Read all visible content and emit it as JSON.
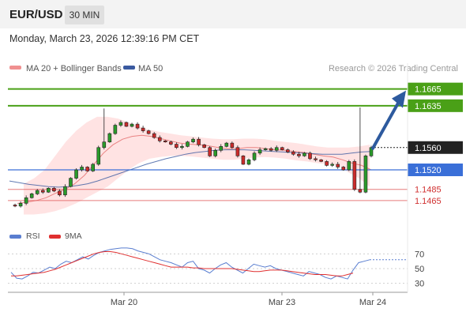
{
  "header": {
    "symbol": "EUR/USD",
    "timeframe": "30 MIN"
  },
  "datetime": "Monday, March 23, 2026 12:39:16 PM CET",
  "legend": {
    "bollinger_label": "MA 20 + Bollinger Bands",
    "ma50_label": "MA 50",
    "credit": "Research © 2026 Trading Central"
  },
  "colors": {
    "resistance": "#4aa017",
    "support_blue": "#3a6fd8",
    "support_red": "#e05a5a",
    "ma20": "#e05a5a",
    "bollinger_fill": "#ffdede",
    "ma50": "#3a5aa0",
    "arrow": "#2d5a9e",
    "candle": "#222222",
    "rsi": "#5a7ed0",
    "rsi_ma": "#e03030"
  },
  "chart_data": [
    {
      "type": "candlestick",
      "ylim": [
        1.1435,
        1.169
      ],
      "x_ticks": [
        "Mar 20",
        "Mar 23",
        "Mar 24"
      ],
      "ma_series": [
        "MA 20 + Bollinger Bands",
        "MA 50"
      ],
      "levels": [
        {
          "value": 1.1665,
          "label": "1.1665",
          "style": "green-box"
        },
        {
          "value": 1.1635,
          "label": "1.1635",
          "style": "green-box"
        },
        {
          "value": 1.156,
          "label": "1.1560",
          "style": "current"
        },
        {
          "value": 1.152,
          "label": "1.1520",
          "style": "blue-box"
        },
        {
          "value": 1.1485,
          "label": "1.1485",
          "style": "red-text"
        },
        {
          "value": 1.1465,
          "label": "1.1465",
          "style": "red-text"
        }
      ],
      "close_path": [
        1.1457,
        1.1455,
        1.146,
        1.147,
        1.1477,
        1.1483,
        1.148,
        1.1487,
        1.1482,
        1.1475,
        1.149,
        1.1505,
        1.152,
        1.1525,
        1.1518,
        1.153,
        1.156,
        1.157,
        1.1585,
        1.16,
        1.1605,
        1.1598,
        1.1602,
        1.1595,
        1.159,
        1.1585,
        1.1578,
        1.1572,
        1.157,
        1.1566,
        1.156,
        1.1562,
        1.157,
        1.1575,
        1.1565,
        1.156,
        1.1545,
        1.1555,
        1.1562,
        1.1568,
        1.156,
        1.1545,
        1.153,
        1.1538,
        1.155,
        1.1556,
        1.1558,
        1.1555,
        1.156,
        1.1556,
        1.1552,
        1.1548,
        1.1545,
        1.155,
        1.154,
        1.1538,
        1.1535,
        1.1528,
        1.153,
        1.1525,
        1.152,
        1.1535,
        1.1485,
        1.148,
        1.1545,
        1.156
      ],
      "ma20": [
        1.146,
        1.1462,
        1.1465,
        1.147,
        1.1478,
        1.1485,
        1.1495,
        1.151,
        1.153,
        1.155,
        1.1565,
        1.1575,
        1.158,
        1.1582,
        1.158,
        1.1576,
        1.1572,
        1.1568,
        1.1566,
        1.1565,
        1.1563,
        1.156,
        1.1558,
        1.1558,
        1.156,
        1.156,
        1.1558,
        1.1556,
        1.1555,
        1.1553,
        1.1551,
        1.1548,
        1.1545,
        1.1543,
        1.1538,
        1.1532,
        1.1528,
        1.152
      ],
      "bb_upper": [
        1.1495,
        1.1505,
        1.152,
        1.1545,
        1.157,
        1.159,
        1.1605,
        1.1615,
        1.1615,
        1.1612,
        1.1605,
        1.1598,
        1.1592,
        1.1588,
        1.1585,
        1.1582,
        1.158,
        1.1578,
        1.1576,
        1.1575,
        1.1575,
        1.1576,
        1.1576,
        1.1575,
        1.1572,
        1.157,
        1.1568,
        1.1565,
        1.1562,
        1.156,
        1.156,
        1.156,
        1.1562,
        1.1565
      ],
      "bb_lower": [
        1.144,
        1.144,
        1.1442,
        1.1446,
        1.1452,
        1.146,
        1.147,
        1.148,
        1.149,
        1.1505,
        1.152,
        1.1532,
        1.154,
        1.1543,
        1.1545,
        1.1545,
        1.1544,
        1.1542,
        1.154,
        1.1538,
        1.1538,
        1.154,
        1.1542,
        1.1543,
        1.1542,
        1.154,
        1.1537,
        1.1535,
        1.1532,
        1.153,
        1.1528,
        1.1515,
        1.1505,
        1.149
      ],
      "ma50": [
        1.15,
        1.1497,
        1.1494,
        1.1492,
        1.149,
        1.1489,
        1.149,
        1.1492,
        1.1495,
        1.15,
        1.1506,
        1.1512,
        1.1518,
        1.1524,
        1.153,
        1.1535,
        1.154,
        1.1544,
        1.1548,
        1.1551,
        1.1553,
        1.1555,
        1.1556,
        1.1556,
        1.1556,
        1.1555,
        1.1554,
        1.1553,
        1.1552,
        1.1551,
        1.155,
        1.1549,
        1.1548,
        1.1548,
        1.1548,
        1.155,
        1.1552,
        1.1553
      ]
    },
    {
      "type": "line",
      "ylim": [
        20,
        80
      ],
      "y_ticks": [
        70,
        50,
        30
      ],
      "series": [
        {
          "name": "RSI",
          "values": [
            45,
            37,
            36,
            40,
            45,
            44,
            48,
            52,
            50,
            56,
            60,
            58,
            62,
            66,
            63,
            68,
            72,
            74,
            76,
            77,
            78,
            78,
            77,
            74,
            72,
            70,
            66,
            62,
            60,
            58,
            55,
            52,
            58,
            60,
            50,
            48,
            44,
            50,
            55,
            58,
            52,
            48,
            44,
            50,
            56,
            54,
            52,
            54,
            50,
            48,
            46,
            44,
            42,
            40,
            46,
            44,
            42,
            38,
            36,
            40,
            38,
            36,
            48,
            58,
            60,
            62
          ]
        },
        {
          "name": "9MA",
          "values": [
            40,
            40,
            41,
            42,
            43,
            44,
            45,
            47,
            49,
            52,
            55,
            58,
            61,
            64,
            67,
            70,
            72,
            73,
            73,
            72,
            70,
            68,
            66,
            64,
            62,
            60,
            58,
            56,
            54,
            52,
            52,
            52,
            52,
            51,
            51,
            50,
            50,
            50,
            50,
            50,
            50,
            49,
            48,
            47,
            46,
            46,
            47,
            48,
            48,
            48,
            47,
            46,
            45,
            44,
            43,
            42,
            42,
            42,
            41,
            40,
            40,
            42,
            44
          ]
        }
      ]
    }
  ]
}
